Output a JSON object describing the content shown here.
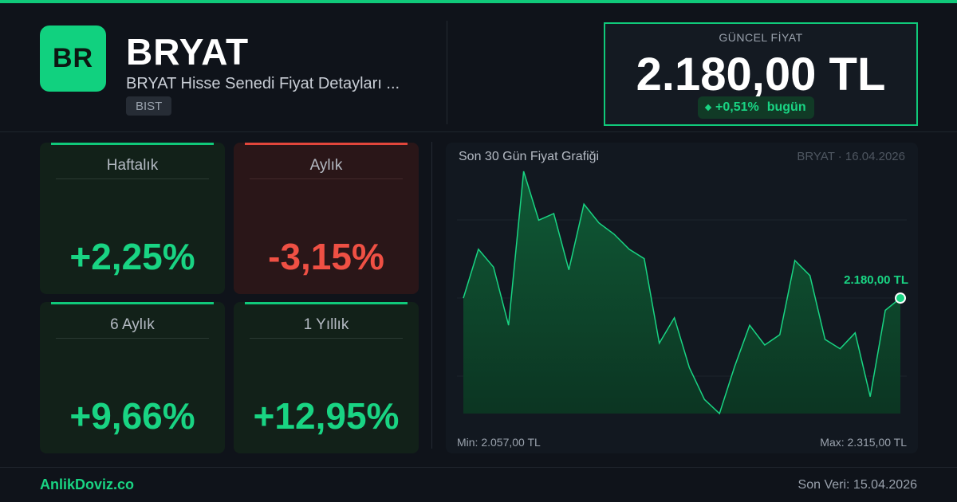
{
  "header": {
    "logo_text": "BR",
    "ticker": "BRYAT",
    "subtitle": "BRYAT Hisse Senedi Fiyat Detayları ...",
    "exchange": "BIST"
  },
  "price": {
    "label": "GÜNCEL FİYAT",
    "value": "2.180,00 TL",
    "change": "+0,51%",
    "change_suffix": "bugün"
  },
  "cards": [
    {
      "label": "Haftalık",
      "value": "+2,25%",
      "trend": "up"
    },
    {
      "label": "Aylık",
      "value": "-3,15%",
      "trend": "down"
    },
    {
      "label": "6 Aylık",
      "value": "+9,66%",
      "trend": "up"
    },
    {
      "label": "1 Yıllık",
      "value": "+12,95%",
      "trend": "up"
    }
  ],
  "chart": {
    "title": "Son 30 Gün Fiyat Grafiği",
    "meta": "BRYAT · 16.04.2026",
    "min_label": "Min: 2.057,00 TL",
    "max_label": "Max: 2.315,00 TL",
    "last_label": "2.180,00 TL"
  },
  "chart_data": {
    "type": "area",
    "x": [
      1,
      2,
      3,
      4,
      5,
      6,
      7,
      8,
      9,
      10,
      11,
      12,
      13,
      14,
      15,
      16,
      17,
      18,
      19,
      20,
      21,
      22,
      23,
      24,
      25,
      26,
      27,
      28,
      29,
      30
    ],
    "values": [
      2180,
      2232,
      2213,
      2151,
      2315,
      2263,
      2270,
      2210,
      2280,
      2260,
      2248,
      2232,
      2222,
      2132,
      2159,
      2106,
      2072,
      2057,
      2107,
      2151,
      2130,
      2141,
      2220,
      2204,
      2136,
      2126,
      2143,
      2075,
      2167,
      2180
    ],
    "ylim": [
      2057,
      2315
    ],
    "grid": true,
    "color": "#19d483"
  },
  "colors": {
    "accent": "#10c97a",
    "negative": "#e2463b"
  },
  "footer": {
    "brand": "AnlikDoviz.co",
    "last_data": "Son Veri: 15.04.2026"
  }
}
